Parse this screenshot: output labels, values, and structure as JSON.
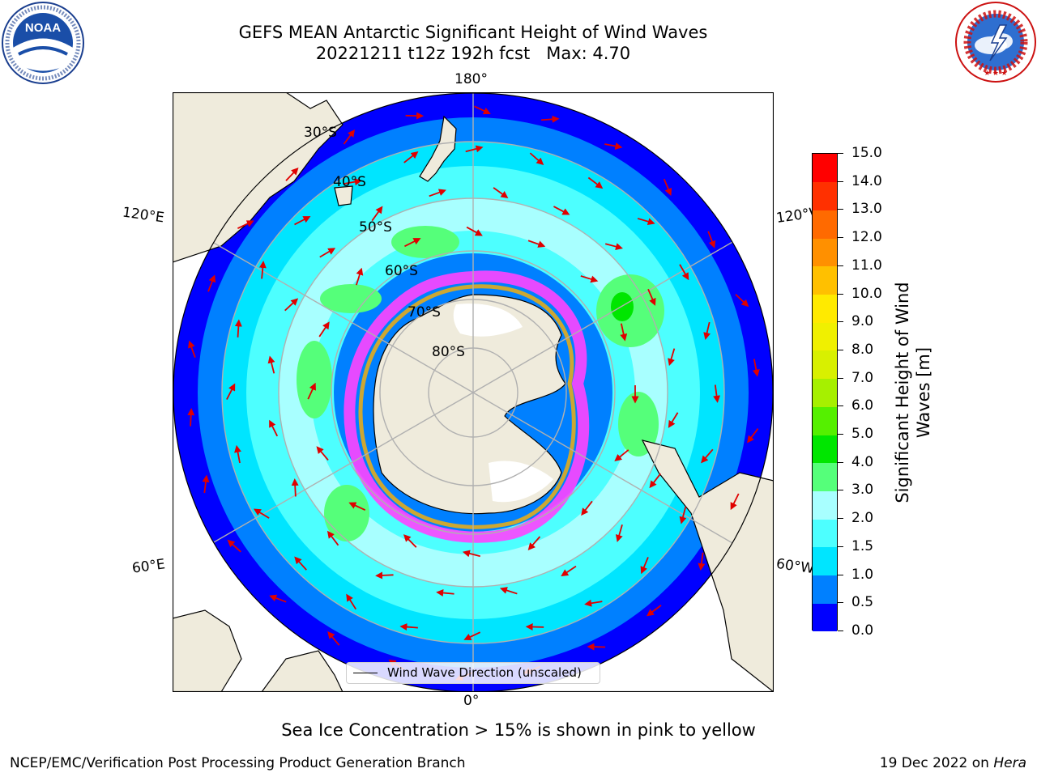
{
  "header": {
    "title_line1": "GEFS MEAN Antarctic Significant Height of Wind Waves",
    "title_line2": "20221211 t12z 192h fcst   Max: 4.70"
  },
  "logos": {
    "noaa": {
      "name": "NOAA",
      "ring_text": "NATIONAL OCEANIC AND ATMOSPHERIC ADMINISTRATION · U.S. DEPARTMENT OF COMMERCE"
    },
    "nws": {
      "ring_text": "NATIONAL WEATHER SERVICE"
    }
  },
  "map": {
    "projection": "south polar stereographic",
    "lon_labels": {
      "top": "180°",
      "bottom": "0°",
      "left_upper": "120°E",
      "right_upper": "120°W",
      "left_lower": "60°E",
      "right_lower": "60°W"
    },
    "lat_labels": [
      "30°S",
      "40°S",
      "50°S",
      "60°S",
      "70°S",
      "80°S"
    ],
    "legend": "Wind Wave Direction (unscaled)",
    "arrow_color": "#e00000",
    "land_color": "#efebdc"
  },
  "colorbar": {
    "label": "Significant Height of Wind Waves [m]",
    "ticks": [
      "0.0",
      "0.5",
      "1.0",
      "1.5",
      "2.0",
      "3.0",
      "4.0",
      "5.0",
      "6.0",
      "7.0",
      "8.0",
      "9.0",
      "10.0",
      "11.0",
      "12.0",
      "13.0",
      "14.0",
      "15.0"
    ],
    "colors": [
      "#0000ff",
      "#0080ff",
      "#00e5ff",
      "#4dffff",
      "#a8ffff",
      "#55ff7a",
      "#00e600",
      "#55f000",
      "#a6f000",
      "#d8f000",
      "#f0f000",
      "#ffea00",
      "#ffc000",
      "#ff9000",
      "#ff6a00",
      "#ff3000",
      "#ff0000"
    ]
  },
  "caption": "Sea Ice Concentration > 15% is shown in pink to yellow",
  "footer": {
    "left": "NCEP/EMC/Verification Post Processing Product Generation Branch",
    "right_prefix": "19 Dec 2022 on ",
    "right_system": "Hera"
  }
}
